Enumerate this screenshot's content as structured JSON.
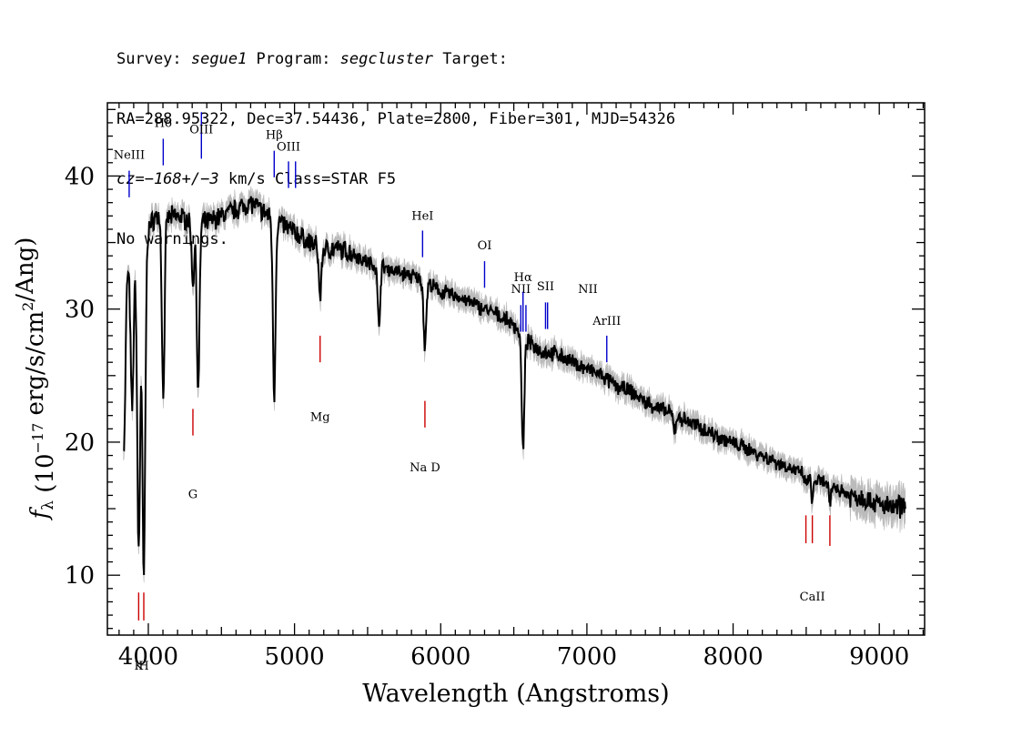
{
  "header": {
    "line1": {
      "survey_label": "Survey: ",
      "survey": "segue1",
      "program_label": " Program: ",
      "program": "segcluster",
      "target_label": " Target:"
    },
    "line2": "RA=288.95322, Dec=37.54436, Plate=2800, Fiber=301, MJD=54326",
    "line3": {
      "cz": "cz=−168+/−3",
      "rest": " km/s Class=STAR F5"
    },
    "line4": "No warnings."
  },
  "chart_data": {
    "type": "line",
    "xlabel": "Wavelength (Angstroms)",
    "ylabel": "fλ (10⁻¹⁷ erg/s/cm²/Ang)",
    "xlim": [
      3720,
      9310
    ],
    "ylim": [
      5.5,
      45.5
    ],
    "xticks": [
      4000,
      5000,
      6000,
      7000,
      8000,
      9000
    ],
    "yticks": [
      10,
      20,
      30,
      40
    ],
    "grid": false,
    "colors": {
      "spectrum": "#000000",
      "error": "#bbbbbb",
      "emission": "#0000cc",
      "absorption": "#cc0000"
    },
    "continuum": [
      [
        3830,
        28
      ],
      [
        3850,
        33
      ],
      [
        3900,
        34
      ],
      [
        3950,
        35
      ],
      [
        4000,
        36
      ],
      [
        4050,
        37
      ],
      [
        4100,
        36.8
      ],
      [
        4200,
        37
      ],
      [
        4300,
        36.6
      ],
      [
        4400,
        36.5
      ],
      [
        4500,
        37
      ],
      [
        4600,
        37.5
      ],
      [
        4700,
        38
      ],
      [
        4800,
        37.2
      ],
      [
        4900,
        36.5
      ],
      [
        5000,
        35.8
      ],
      [
        5100,
        35
      ],
      [
        5200,
        34.5
      ],
      [
        5300,
        34.5
      ],
      [
        5400,
        34.2
      ],
      [
        5500,
        33.5
      ],
      [
        5600,
        33.2
      ],
      [
        5700,
        32.8
      ],
      [
        5800,
        32.5
      ],
      [
        5900,
        32
      ],
      [
        6000,
        31.3
      ],
      [
        6100,
        31
      ],
      [
        6200,
        30.5
      ],
      [
        6300,
        30
      ],
      [
        6400,
        29.5
      ],
      [
        6500,
        28.8
      ],
      [
        6600,
        27.5
      ],
      [
        6700,
        26.8
      ],
      [
        6800,
        26.6
      ],
      [
        6900,
        26
      ],
      [
        7000,
        25.5
      ],
      [
        7100,
        25
      ],
      [
        7200,
        24.2
      ],
      [
        7300,
        23.8
      ],
      [
        7400,
        23
      ],
      [
        7500,
        22.5
      ],
      [
        7600,
        22
      ],
      [
        7700,
        21.5
      ],
      [
        7800,
        21
      ],
      [
        7900,
        20.4
      ],
      [
        8000,
        19.9
      ],
      [
        8100,
        19.5
      ],
      [
        8200,
        19
      ],
      [
        8300,
        18.5
      ],
      [
        8400,
        18
      ],
      [
        8500,
        17.4
      ],
      [
        8600,
        17
      ],
      [
        8700,
        16.6
      ],
      [
        8800,
        16
      ],
      [
        8900,
        15.8
      ],
      [
        9000,
        15.3
      ],
      [
        9100,
        15
      ],
      [
        9180,
        15.3
      ]
    ],
    "absorption_features": [
      [
        3835,
        20
      ],
      [
        3889,
        22.5
      ],
      [
        3934,
        11.8
      ],
      [
        3969,
        9.8
      ],
      [
        4102,
        23.5
      ],
      [
        4305,
        32
      ],
      [
        4341,
        23.6
      ],
      [
        4861,
        23.6
      ],
      [
        5175,
        31
      ],
      [
        5577,
        29
      ],
      [
        5892,
        27.2
      ],
      [
        6563,
        19.3
      ],
      [
        7600,
        21
      ],
      [
        8498,
        16.5
      ],
      [
        8542,
        15.2
      ],
      [
        8662,
        15
      ]
    ],
    "emission_lines": [
      {
        "label": "NeIII",
        "wave": 3869,
        "label_y": 41.3,
        "y_top": 40.4,
        "y_bottom": 38.4
      },
      {
        "label": "Hδ",
        "wave": 4102,
        "label_y": 43.7,
        "y_top": 42.8,
        "y_bottom": 40.8
      },
      {
        "label": "OIII",
        "wave": 4363,
        "label_y": 43.2,
        "y_top": 44.8,
        "y_bottom": 41.3
      },
      {
        "label": "Hβ",
        "wave": 4861,
        "label_y": 42.8,
        "y_top": 41.9,
        "y_bottom": 39.9
      },
      {
        "label": "OIII",
        "wave": 4959,
        "label_y": 41.9,
        "y_top": 41.1,
        "y_bottom": 39.1
      },
      {
        "label": "",
        "wave": 5007,
        "y_top": 41.1,
        "y_bottom": 39.1
      },
      {
        "label": "HeI",
        "wave": 5876,
        "label_y": 36.7,
        "y_top": 35.9,
        "y_bottom": 33.9
      },
      {
        "label": "OI",
        "wave": 6300,
        "label_y": 34.5,
        "y_top": 33.6,
        "y_bottom": 31.6
      },
      {
        "label": "NII",
        "wave": 6548,
        "label_y": 31.2,
        "y_top": 30.3,
        "y_bottom": 28.3
      },
      {
        "label": "Hα",
        "wave": 6563,
        "label_y": 32.1,
        "y_top": 31.3,
        "y_bottom": 28.3
      },
      {
        "label": "",
        "wave": 6583,
        "y_top": 30.3,
        "y_bottom": 28.3
      },
      {
        "label": "SII",
        "wave": 6717,
        "label_y": 31.4,
        "y_top": 30.5,
        "y_bottom": 28.5
      },
      {
        "label": "",
        "wave": 6731,
        "y_top": 30.5,
        "y_bottom": 28.5
      },
      {
        "label": "NII",
        "wave": 6583,
        "label_y": 31.2,
        "label_dx": 68
      },
      {
        "label": "ArIII",
        "wave": 7136,
        "label_y": 28.8,
        "y_top": 28.0,
        "y_bottom": 26.0
      }
    ],
    "absorption_lines": [
      {
        "label": "Mg",
        "wave": 5175,
        "label_y": 21.6,
        "y_top": 28.0,
        "y_bottom": 26.0
      },
      {
        "label": "Na D",
        "wave": 5892,
        "label_y": 17.8,
        "y_top": 23.1,
        "y_bottom": 21.1
      },
      {
        "label": "G",
        "wave": 4305,
        "label_y": 15.8,
        "y_top": 22.5,
        "y_bottom": 20.5
      },
      {
        "label": "K",
        "wave": 3934,
        "label_y": 2.9,
        "y_top": 8.7,
        "y_bottom": 6.6
      },
      {
        "label": "H",
        "wave": 3969,
        "label_y": 2.9,
        "y_top": 8.7,
        "y_bottom": 6.6
      },
      {
        "label": "CaII",
        "wave": 8542,
        "label_y": 8.1,
        "y_top": 14.5,
        "y_bottom": 12.4
      },
      {
        "label": "",
        "wave": 8498,
        "y_top": 14.5,
        "y_bottom": 12.4
      },
      {
        "label": "",
        "wave": 8662,
        "y_top": 14.5,
        "y_bottom": 12.2
      }
    ]
  }
}
